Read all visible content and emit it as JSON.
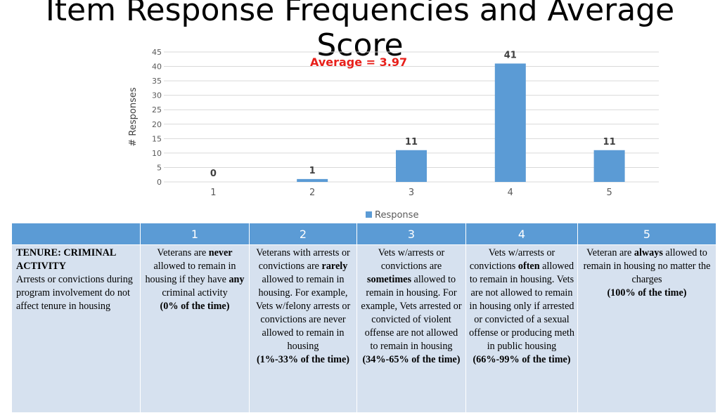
{
  "title": "Item Response Frequencies and Average Score",
  "annotation": "Average = 3.97",
  "chart_data": {
    "type": "bar",
    "categories": [
      "1",
      "2",
      "3",
      "4",
      "5"
    ],
    "series": [
      {
        "name": "Response",
        "values": [
          0,
          1,
          11,
          41,
          11
        ],
        "color": "#5b9bd5"
      }
    ],
    "data_labels": [
      "0",
      "1",
      "11",
      "41",
      "11"
    ],
    "ylabel": "# Responses",
    "xlabel": "",
    "ylim": [
      0,
      45
    ],
    "yticks": [
      0,
      5,
      10,
      15,
      20,
      25,
      30,
      35,
      40,
      45
    ],
    "grid": true,
    "legend": "bottom"
  },
  "table": {
    "headers": [
      "",
      "1",
      "2",
      "3",
      "4",
      "5"
    ],
    "criterion_title": "TENURE: CRIMINAL ACTIVITY",
    "criterion_desc": "Arrests or convictions during program involvement do not affect tenure in housing",
    "c1": {
      "a": "Veterans are ",
      "b": "never",
      "c": " allowed to remain in housing if they have ",
      "d": "any",
      "e": " criminal activity",
      "pct": "(0% of the time)"
    },
    "c2": {
      "a": "Veterans with arrests or convictions are ",
      "b": "rarely",
      "c": " allowed to remain in housing. For example, Vets w/felony arrests or convictions are never allowed to remain in housing",
      "pct": "(1%-33% of the time)"
    },
    "c3": {
      "a": "Vets w/arrests or convictions are ",
      "b": "sometimes",
      "c": " allowed to remain in housing.  For example, Vets arrested or convicted of violent offense are not allowed to remain in housing",
      "pct": "(34%-65% of the time)"
    },
    "c4": {
      "a": "Vets w/arrests or convictions ",
      "b": "often",
      "c": " allowed to remain in housing. Vets are not allowed to remain in housing only if arrested or convicted of a sexual offense or producing meth in public housing",
      "pct": "(66%-99% of the time)"
    },
    "c5": {
      "a": "Veteran are ",
      "b": "always",
      "c": " allowed to remain in housing no matter the charges",
      "pct": "(100% of the time)"
    }
  }
}
